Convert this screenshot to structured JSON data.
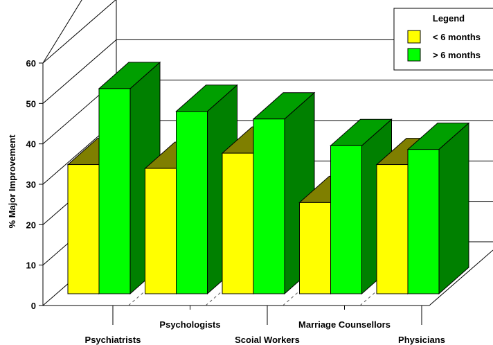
{
  "chart_data": {
    "type": "bar",
    "title": "",
    "xlabel": "",
    "ylabel": "% Major Improvement",
    "ylim": [
      0,
      60
    ],
    "yticks": [
      0,
      10,
      20,
      30,
      40,
      50,
      60
    ],
    "categories": [
      "Psychiatrists",
      "Psychologists",
      "Scoial Workers",
      "Marriage Counsellors",
      "Physicians"
    ],
    "series": [
      {
        "name": "< 6 months",
        "color": "#ffff00",
        "values": [
          34,
          33,
          37,
          24,
          34
        ]
      },
      {
        "name": "> 6 months",
        "color": "#00ff00",
        "values": [
          54,
          48,
          46,
          39,
          38
        ]
      }
    ],
    "legend": {
      "title": "Legend",
      "position": "top-right"
    },
    "grid": true,
    "style": "3d"
  }
}
